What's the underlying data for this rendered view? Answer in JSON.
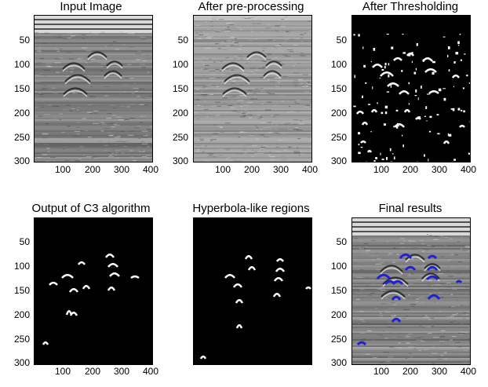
{
  "figure": {
    "panels": [
      {
        "id": "input",
        "title": "Input Image",
        "kind": "radargram",
        "yticks": [
          "50",
          "100",
          "150",
          "200",
          "250",
          "300"
        ],
        "xticks": [
          "100",
          "200",
          "300",
          "400"
        ]
      },
      {
        "id": "preprocessed",
        "title": "After pre-processing",
        "kind": "preprocessed",
        "yticks": [
          "50",
          "100",
          "150",
          "200",
          "250",
          "300"
        ],
        "xticks": [
          "100",
          "200",
          "300",
          "400"
        ]
      },
      {
        "id": "threshold",
        "title": "After Thresholding",
        "kind": "binary-noisy",
        "yticks": [
          "50",
          "100",
          "150",
          "200",
          "250",
          "300"
        ],
        "xticks": [
          "100",
          "200",
          "300",
          "400"
        ]
      },
      {
        "id": "c3",
        "title": "Output of C3 algorithm",
        "kind": "binary-clean",
        "yticks": [
          "50",
          "100",
          "150",
          "200",
          "250",
          "300"
        ],
        "xticks": [
          "100",
          "200",
          "300",
          "400"
        ]
      },
      {
        "id": "hyperbola",
        "title": "Hyperbola-like regions",
        "kind": "binary-regions",
        "yticks": [],
        "xticks": []
      },
      {
        "id": "final",
        "title": "Final results",
        "kind": "radargram-overlay",
        "yticks": [
          "50",
          "100",
          "150",
          "200",
          "250",
          "300"
        ],
        "xticks": [
          "100",
          "200",
          "300",
          "400"
        ]
      }
    ],
    "colors": {
      "overlay": "#1f1fe0",
      "binary_fg": "#ffffff",
      "binary_bg": "#000000"
    }
  }
}
